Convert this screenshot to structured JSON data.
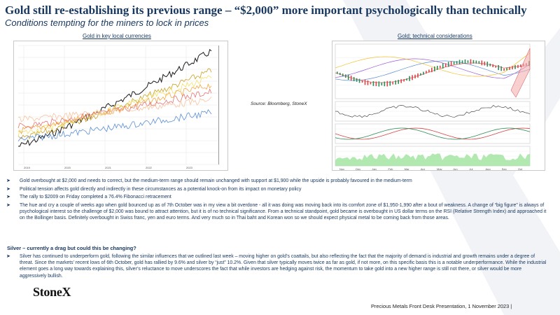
{
  "slide": {
    "title": "Gold still re-establishing its previous range – “$2,000” more important psychologically than technically",
    "subtitle": "Conditions tempting for the miners to lock in prices",
    "left_chart_title": "Gold in key local currencies",
    "right_chart_title": "Gold; technical considerations",
    "source_note": "Source: Bloomberg, StoneX",
    "bullets": [
      "Gold overbought at $2,000 and needs to correct, but the medium-term range should remain unchanged with support at $1,900 while the upside is probably favoured in the medium-term",
      "Political tension affects gold directly and indirectly in these circumstances as a potential knock-on from its impact on monetary policy",
      "The rally to $2009 on Friday completed a 76.4% Fibonacci retracement",
      "The hue and cry a couple of weeks ago when gold bounced up as of 7th October was in my view a bit overdone - all it was doing was moving back into its comfort zone of $1,950-1,990  after a bout of weakness.  A change of “big figure” is always of psychological interest so the challenge of $2,000 was bound to attract attention, but it is of no technical significance.  From a technical standpoint, gold became is overbought  in US dollar terms on the RSI (Relative Strength Index) and approached  it on the Bollinger basis.  Definitely overbought in Swiss franc, yen and euro terms.  And very much so in Thai baht and Korean won so we should expect physical metal to be coming back from those areas."
    ],
    "silver_heading": "Silver – currently a drag but could this be changing?",
    "silver_body": "Silver has continued to underperform gold, following the similar influences that we outlined last week – moving higher on gold’s coattails, but also reflecting the fact that the majority of demand is industrial and growth remains under a degree of threat.  Since the markets’ recent lows of 6th October, gold has rallied by 9.6% and silver by “just” 10.2%.  Given that silver typically moves twice as far as gold, if not more, on this specific basis this is a notable underperformance.   While the industrial element goes a long way towards explaining this, silver’s reluctance to move underscores the fact that while investors are hedging against risk, the momentum  to take gold into a new higher range is still not there, or silver would be more aggressively bullish.",
    "logo": "StoneX",
    "footer": "Precious Metals Front Desk Presentation, 1 November 2023 |",
    "bullet_icon": "arrow-bullet-icon",
    "colors": {
      "title": "#17375e",
      "body_text": "#17375e",
      "gold_line": "#1a1a1a",
      "watermark": "#f1f3f6"
    }
  },
  "chart_data": [
    {
      "type": "line",
      "title": "Gold in key local currencies",
      "x_tick_labels": [
        "2019",
        "2020",
        "2021",
        "2022",
        "2023"
      ],
      "series_note": "multiple rebased local-currency gold series; values not legible",
      "grid": true
    },
    {
      "type": "line",
      "title": "Gold; technical considerations",
      "x_tick_labels": [
        "Nov",
        "Dec",
        "Jan",
        "Feb",
        "Mar",
        "Apr",
        "May",
        "Jun",
        "Jul",
        "Aug",
        "Sep",
        "Oct"
      ],
      "panels": [
        "price with moving averages",
        "RSI",
        "MACD",
        "volume"
      ],
      "grid": true
    }
  ]
}
